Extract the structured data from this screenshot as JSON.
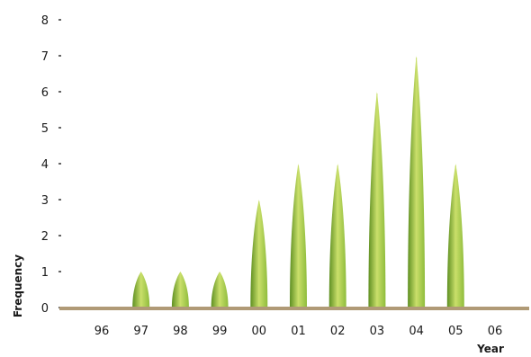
{
  "chart_data": {
    "type": "bar",
    "title": "",
    "xlabel": "Year",
    "ylabel": "Frequency",
    "categories": [
      "96",
      "97",
      "98",
      "99",
      "00",
      "01",
      "02",
      "03",
      "04",
      "05",
      "06"
    ],
    "values": [
      0,
      1,
      1,
      1,
      3,
      4,
      4,
      6,
      7,
      4,
      0
    ],
    "yticks": [
      "0",
      "1",
      "2",
      "3",
      "4",
      "5",
      "6",
      "7",
      "8"
    ],
    "ylim": [
      0,
      8
    ],
    "grid": false,
    "mark_style": "leaf-shaped bars",
    "colors": {
      "leaf_light": "#c9df6a",
      "leaf_mid": "#8fbc3c",
      "leaf_dark": "#5e8f22",
      "baseline": "#b09a76"
    }
  }
}
